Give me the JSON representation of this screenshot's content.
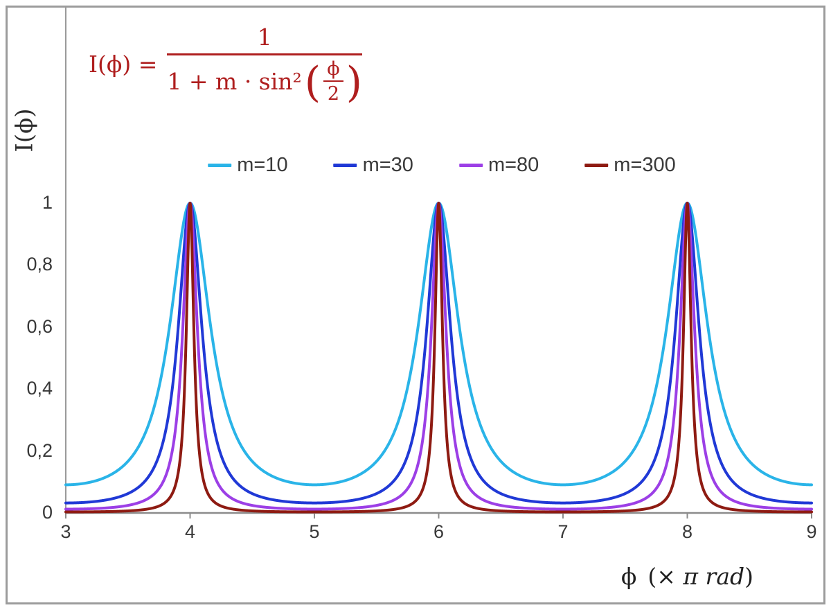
{
  "formula": {
    "lhs": "I(ϕ) =",
    "numerator": "1",
    "denom_prefix": "1 + m · sin²",
    "inner_num": "ϕ",
    "inner_den": "2",
    "color": "#af1e1e"
  },
  "axes": {
    "ylabel": "I(ϕ)",
    "xlabel": {
      "phi": "ϕ",
      "open": "(×",
      "pi": "π rad",
      "close": ")"
    }
  },
  "chart_data": {
    "type": "line",
    "title": "",
    "formula": "I(ϕ) = 1 / (1 + m·sin²(ϕ/2))",
    "xlabel": "ϕ (× π rad)",
    "ylabel": "I(ϕ)",
    "xlim": [
      3,
      9
    ],
    "ylim": [
      0,
      1
    ],
    "x_ticks": [
      3,
      4,
      5,
      6,
      7,
      8,
      9
    ],
    "x_tick_labels": [
      "3",
      "4",
      "5",
      "6",
      "7",
      "8",
      "9"
    ],
    "y_ticks": [
      0,
      0.2,
      0.4,
      0.6,
      0.8,
      1
    ],
    "y_tick_labels": [
      "0",
      "0,2",
      "0,4",
      "0,6",
      "0,8",
      "1"
    ],
    "grid": false,
    "legend_position": "top-center",
    "sample_step": 0.002,
    "peaks_at_x": [
      4,
      6,
      8
    ],
    "peak_value": 1,
    "series": [
      {
        "name": "m=10",
        "m": 10,
        "color": "#2ab4e8",
        "min_value": 0.0909
      },
      {
        "name": "m=30",
        "m": 30,
        "color": "#2039d6",
        "min_value": 0.0323
      },
      {
        "name": "m=80",
        "m": 80,
        "color": "#9c3fe6",
        "min_value": 0.0123
      },
      {
        "name": "m=300",
        "m": 300,
        "color": "#8e1b12",
        "min_value": 0.0033
      }
    ],
    "colors": {
      "axis": "#9a9a9a",
      "tick_text": "#383838",
      "frame": "#9c9c9c"
    }
  }
}
